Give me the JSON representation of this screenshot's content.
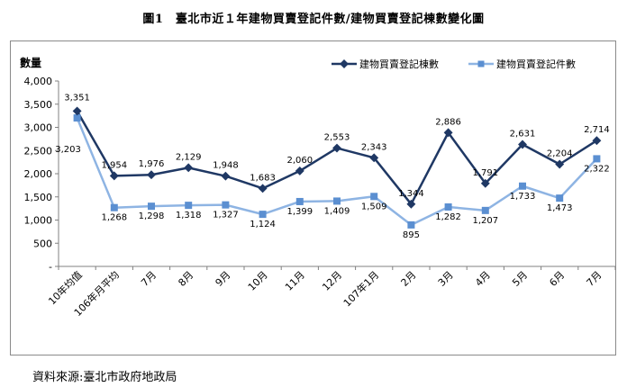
{
  "title": "圖1　臺北市近１年建物買賣登記件數/建物買賣登記棟數變化圖",
  "source_note": "資料來源:臺北市政府地政局",
  "colors": {
    "series1": "#1f3864",
    "series2": "#8eb4e3",
    "axis": "#808080"
  },
  "chart_data": {
    "type": "line",
    "ylabel": "數量",
    "ylim": [
      0,
      4000
    ],
    "yticks": [
      "-",
      "500",
      "1,000",
      "1,500",
      "2,000",
      "2,500",
      "3,000",
      "3,500",
      "4,000"
    ],
    "grid": false,
    "legend_position": "top-right",
    "categories": [
      "10年均值",
      "106年月平均",
      "7月",
      "8月",
      "9月",
      "10月",
      "11月",
      "12月",
      "107年1月",
      "2月",
      "3月",
      "4月",
      "5月",
      "6月",
      "7月"
    ],
    "series": [
      {
        "name": "建物買賣登記棟數",
        "marker": "diamond",
        "values": [
          3351,
          1954,
          1976,
          2129,
          1948,
          1683,
          2060,
          2553,
          2343,
          1344,
          2886,
          1791,
          2631,
          2204,
          2714
        ],
        "labels": [
          "3,351",
          "1,954",
          "1,976",
          "2,129",
          "1,948",
          "1,683",
          "2,060",
          "2,553",
          "2,343",
          "1,344",
          "2,886",
          "1,791",
          "2,631",
          "2,204",
          "2,714"
        ]
      },
      {
        "name": "建物買賣登記件數",
        "marker": "square",
        "values": [
          3203,
          1268,
          1298,
          1318,
          1327,
          1124,
          1399,
          1409,
          1509,
          895,
          1282,
          1207,
          1733,
          1473,
          2322
        ],
        "labels": [
          "3,203",
          "1,268",
          "1,298",
          "1,318",
          "1,327",
          "1,124",
          "1,399",
          "1,409",
          "1,509",
          "895",
          "1,282",
          "1,207",
          "1,733",
          "1,473",
          "2,322"
        ]
      }
    ]
  }
}
